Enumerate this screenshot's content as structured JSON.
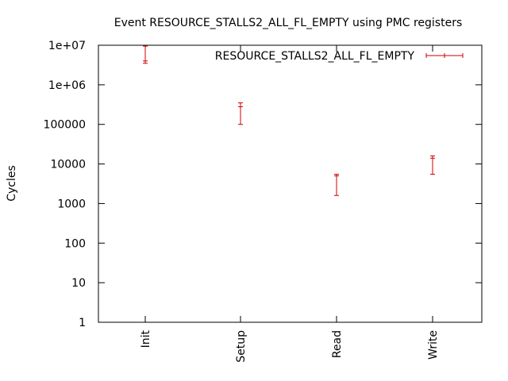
{
  "chart_data": {
    "type": "errorbar",
    "title": "Event RESOURCE_STALLS2_ALL_FL_EMPTY using PMC registers",
    "xlabel": "",
    "ylabel": "Cycles",
    "yscale": "log",
    "ylim": [
      1,
      10000000
    ],
    "yticks": [
      {
        "value": 1,
        "label": "1"
      },
      {
        "value": 10,
        "label": "10"
      },
      {
        "value": 100,
        "label": "100"
      },
      {
        "value": 1000,
        "label": "1000"
      },
      {
        "value": 10000,
        "label": "10000"
      },
      {
        "value": 100000,
        "label": "100000"
      },
      {
        "value": 1000000,
        "label": "1e+06"
      },
      {
        "value": 10000000,
        "label": "1e+07"
      }
    ],
    "categories": [
      "Init",
      "Setup",
      "Read",
      "Write"
    ],
    "legend_position": "top-right",
    "grid": false,
    "series": [
      {
        "name": "RESOURCE_STALLS2_ALL_FL_EMPTY",
        "color": "#cc0000",
        "points": [
          {
            "category": "Init",
            "mean": 4000000,
            "low": 3500000,
            "high": 9500000
          },
          {
            "category": "Setup",
            "mean": 280000,
            "low": 100000,
            "high": 350000
          },
          {
            "category": "Read",
            "mean": 5000,
            "low": 1600.0,
            "high": 5500
          },
          {
            "category": "Write",
            "mean": 14000,
            "low": 5500,
            "high": 16000
          }
        ]
      }
    ]
  }
}
